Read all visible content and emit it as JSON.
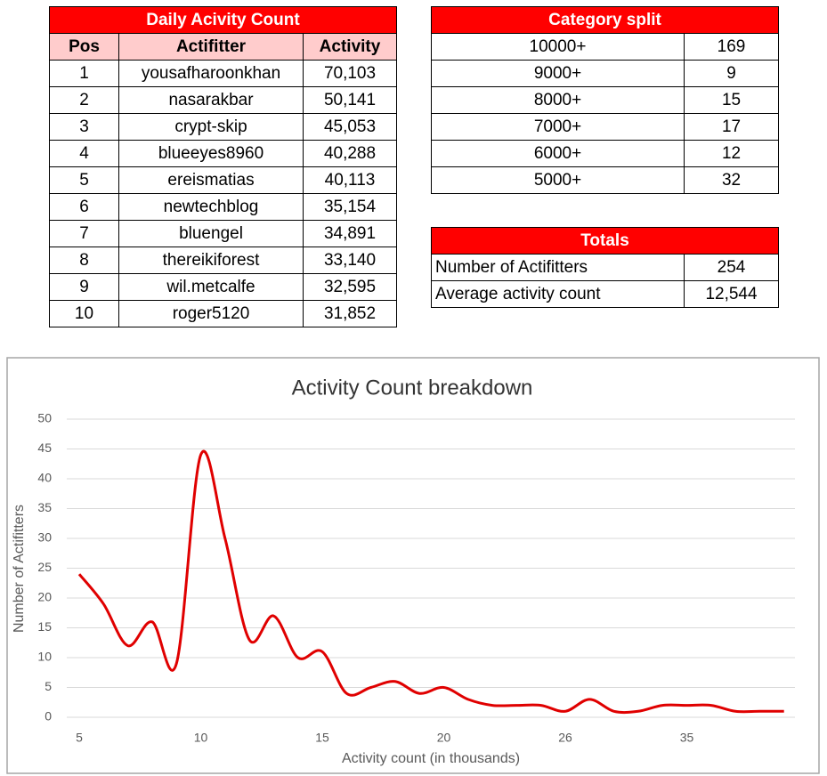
{
  "leaderboard": {
    "title": "Daily Acivity Count",
    "columns": [
      "Pos",
      "Actifitter",
      "Activity"
    ],
    "rows": [
      [
        1,
        "yousafharoonkhan",
        "70,103"
      ],
      [
        2,
        "nasarakbar",
        "50,141"
      ],
      [
        3,
        "crypt-skip",
        "45,053"
      ],
      [
        4,
        "blueeyes8960",
        "40,288"
      ],
      [
        5,
        "ereismatias",
        "40,113"
      ],
      [
        6,
        "newtechblog",
        "35,154"
      ],
      [
        7,
        "bluengel",
        "34,891"
      ],
      [
        8,
        "thereikiforest",
        "33,140"
      ],
      [
        9,
        "wil.metcalfe",
        "32,595"
      ],
      [
        10,
        "roger5120",
        "31,852"
      ]
    ]
  },
  "category_split": {
    "title": "Category split",
    "rows": [
      [
        "10000+",
        169
      ],
      [
        "9000+",
        9
      ],
      [
        "8000+",
        15
      ],
      [
        "7000+",
        17
      ],
      [
        "6000+",
        12
      ],
      [
        "5000+",
        32
      ]
    ]
  },
  "totals": {
    "title": "Totals",
    "rows": [
      [
        "Number of Actifitters",
        254
      ],
      [
        "Average activity count",
        "12,544"
      ]
    ]
  },
  "chart_data": {
    "type": "line",
    "title": "Activity Count breakdown",
    "x_label": "Activity count (in thousands)",
    "y_label": "Number of Actifitters",
    "categories": [
      "5",
      null,
      null,
      null,
      null,
      "10",
      null,
      null,
      null,
      null,
      "15",
      null,
      null,
      null,
      null,
      "20",
      null,
      null,
      null,
      null,
      "26",
      null,
      null,
      null,
      null,
      "35",
      null,
      null,
      null,
      null
    ],
    "series": [
      {
        "name": "Number of Actifitters",
        "color": "#e00000",
        "values": [
          24,
          19,
          12,
          16,
          9,
          44,
          30,
          13,
          17,
          10,
          11,
          4,
          5,
          6,
          4,
          5,
          3,
          2,
          2,
          2,
          1,
          3,
          1,
          1,
          2,
          2,
          2,
          1,
          1,
          1
        ]
      }
    ],
    "ylim": [
      0,
      50
    ],
    "yticks": [
      0,
      5,
      10,
      15,
      20,
      25,
      30,
      35,
      40,
      45,
      50
    ],
    "grid": true,
    "smooth": true
  }
}
